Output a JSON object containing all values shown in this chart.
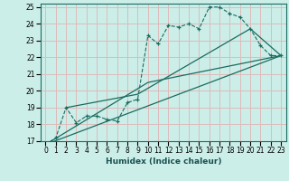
{
  "xlabel": "Humidex (Indice chaleur)",
  "ylabel": "",
  "xlim": [
    -0.5,
    23.5
  ],
  "ylim": [
    17,
    25.2
  ],
  "yticks": [
    17,
    18,
    19,
    20,
    21,
    22,
    23,
    24,
    25
  ],
  "xticks": [
    0,
    1,
    2,
    3,
    4,
    5,
    6,
    7,
    8,
    9,
    10,
    11,
    12,
    13,
    14,
    15,
    16,
    17,
    18,
    19,
    20,
    21,
    22,
    23
  ],
  "bg_color": "#cceee8",
  "grid_color": "#ddbbbb",
  "line_color": "#1a6b60",
  "series": [
    [
      0,
      16.8
    ],
    [
      1,
      17.2
    ],
    [
      2,
      19.0
    ],
    [
      3,
      18.1
    ],
    [
      4,
      18.5
    ],
    [
      5,
      18.5
    ],
    [
      6,
      18.3
    ],
    [
      7,
      18.2
    ],
    [
      8,
      19.3
    ],
    [
      9,
      19.5
    ],
    [
      10,
      23.3
    ],
    [
      11,
      22.8
    ],
    [
      12,
      23.9
    ],
    [
      13,
      23.8
    ],
    [
      14,
      24.0
    ],
    [
      15,
      23.7
    ],
    [
      16,
      25.0
    ],
    [
      17,
      25.0
    ],
    [
      18,
      24.6
    ],
    [
      19,
      24.4
    ],
    [
      20,
      23.7
    ],
    [
      21,
      22.7
    ],
    [
      22,
      22.1
    ],
    [
      23,
      22.1
    ]
  ],
  "line1": [
    [
      0,
      16.8
    ],
    [
      23,
      22.1
    ]
  ],
  "line2": [
    [
      0,
      16.8
    ],
    [
      10,
      20.5
    ],
    [
      23,
      22.1
    ]
  ],
  "line3": [
    [
      2,
      19.0
    ],
    [
      9,
      19.8
    ],
    [
      20,
      23.7
    ],
    [
      23,
      22.1
    ]
  ]
}
